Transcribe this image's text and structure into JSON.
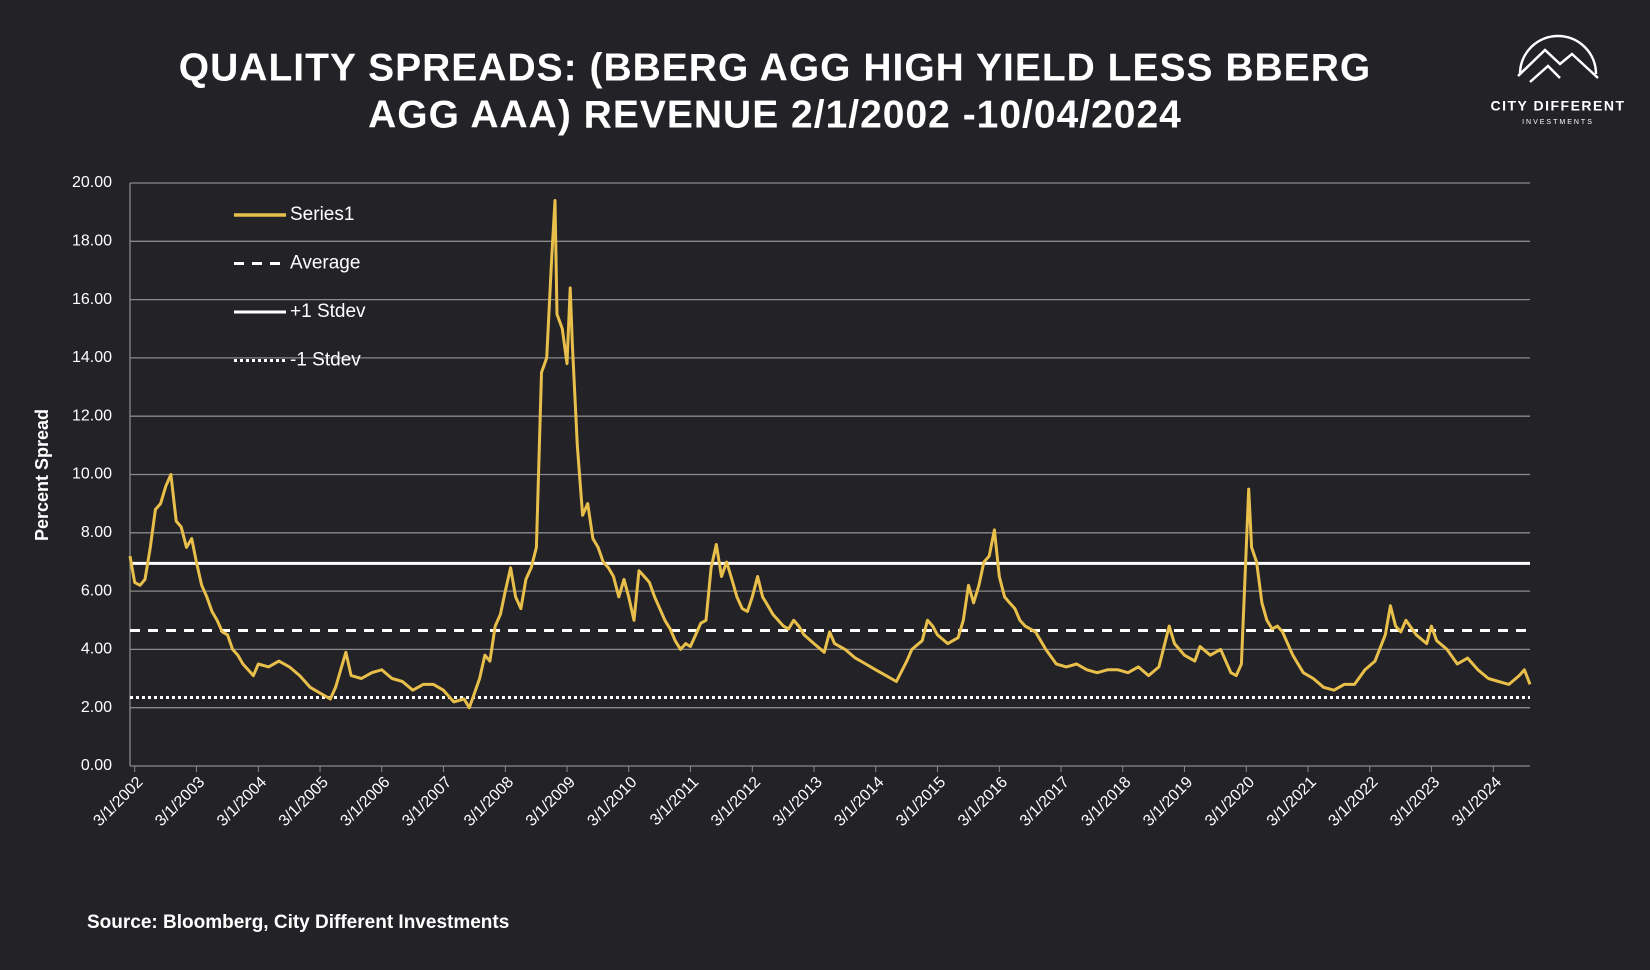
{
  "chart_data": {
    "type": "line",
    "title_lines": [
      "QUALITY SPREADS: (BBERG AGG HIGH YIELD LESS BBERG",
      "AGG AAA) REVENUE 2/1/2002 -10/04/2024"
    ],
    "logo": {
      "name": "CITY DIFFERENT",
      "sub": "INVESTMENTS"
    },
    "y_label": "Percent Spread",
    "source": "Source: Bloomberg, City Different Investments",
    "ylim": [
      0,
      20
    ],
    "yticks": [
      {
        "value": 0,
        "label": "0.00"
      },
      {
        "value": 2,
        "label": "2.00"
      },
      {
        "value": 4,
        "label": "4.00"
      },
      {
        "value": 6,
        "label": "6.00"
      },
      {
        "value": 8,
        "label": "8.00"
      },
      {
        "value": 10,
        "label": "10.00"
      },
      {
        "value": 12,
        "label": "12.00"
      },
      {
        "value": 14,
        "label": "14.00"
      },
      {
        "value": 16,
        "label": "16.00"
      },
      {
        "value": 18,
        "label": "18.00"
      },
      {
        "value": 20,
        "label": "20.00"
      }
    ],
    "xlim": [
      "2/1/2002",
      "10/4/2024"
    ],
    "xticks": [
      "3/1/2002",
      "3/1/2003",
      "3/1/2004",
      "3/1/2005",
      "3/1/2006",
      "3/1/2007",
      "3/1/2008",
      "3/1/2009",
      "3/1/2010",
      "3/1/2011",
      "3/1/2012",
      "3/1/2013",
      "3/1/2014",
      "3/1/2015",
      "3/1/2016",
      "3/1/2017",
      "3/1/2018",
      "3/1/2019",
      "3/1/2020",
      "3/1/2021",
      "3/1/2022",
      "3/1/2023",
      "3/1/2024"
    ],
    "grid": true,
    "series": [
      {
        "name": "Series1",
        "color": "#e8bf4a",
        "x": [
          "2/1/2002",
          "3/1/2002",
          "4/1/2002",
          "5/1/2002",
          "6/1/2002",
          "7/1/2002",
          "8/1/2002",
          "9/1/2002",
          "10/1/2002",
          "11/1/2002",
          "12/1/2002",
          "1/1/2003",
          "2/1/2003",
          "3/1/2003",
          "4/1/2003",
          "5/1/2003",
          "6/1/2003",
          "7/1/2003",
          "8/1/2003",
          "9/1/2003",
          "10/1/2003",
          "11/1/2003",
          "12/1/2003",
          "2/1/2004",
          "3/1/2004",
          "5/1/2004",
          "7/1/2004",
          "9/1/2004",
          "11/1/2004",
          "1/1/2005",
          "3/1/2005",
          "5/1/2005",
          "6/1/2005",
          "7/1/2005",
          "8/1/2005",
          "9/1/2005",
          "11/1/2005",
          "1/1/2006",
          "3/1/2006",
          "5/1/2006",
          "7/1/2006",
          "9/1/2006",
          "11/1/2006",
          "1/1/2007",
          "3/1/2007",
          "5/1/2007",
          "7/1/2007",
          "8/1/2007",
          "9/1/2007",
          "10/1/2007",
          "11/1/2007",
          "12/1/2007",
          "1/1/2008",
          "2/1/2008",
          "3/1/2008",
          "4/1/2008",
          "5/1/2008",
          "6/1/2008",
          "7/1/2008",
          "8/1/2008",
          "9/1/2008",
          "10/1/2008",
          "11/1/2008",
          "12/1/2008",
          "12/20/2008",
          "1/1/2009",
          "2/1/2009",
          "3/1/2009",
          "3/20/2009",
          "4/1/2009",
          "5/1/2009",
          "6/1/2009",
          "7/1/2009",
          "8/1/2009",
          "9/1/2009",
          "10/1/2009",
          "11/1/2009",
          "12/1/2009",
          "1/1/2010",
          "2/1/2010",
          "3/1/2010",
          "4/1/2010",
          "5/1/2010",
          "6/1/2010",
          "7/1/2010",
          "8/1/2010",
          "9/1/2010",
          "10/1/2010",
          "11/1/2010",
          "12/1/2010",
          "1/1/2011",
          "2/1/2011",
          "3/1/2011",
          "4/1/2011",
          "5/1/2011",
          "6/1/2011",
          "7/1/2011",
          "8/1/2011",
          "9/1/2011",
          "10/1/2011",
          "11/1/2011",
          "12/1/2011",
          "1/1/2012",
          "2/1/2012",
          "3/1/2012",
          "4/1/2012",
          "5/1/2012",
          "6/1/2012",
          "7/1/2012",
          "8/1/2012",
          "9/1/2012",
          "10/1/2012",
          "11/1/2012",
          "12/1/2012",
          "1/1/2013",
          "3/1/2013",
          "5/1/2013",
          "6/1/2013",
          "7/1/2013",
          "9/1/2013",
          "11/1/2013",
          "1/1/2014",
          "3/1/2014",
          "5/1/2014",
          "7/1/2014",
          "9/1/2014",
          "10/1/2014",
          "12/1/2014",
          "1/1/2015",
          "2/1/2015",
          "3/1/2015",
          "5/1/2015",
          "7/1/2015",
          "8/1/2015",
          "9/1/2015",
          "10/1/2015",
          "11/1/2015",
          "12/1/2015",
          "1/1/2016",
          "2/1/2016",
          "3/1/2016",
          "4/1/2016",
          "5/1/2016",
          "6/1/2016",
          "7/1/2016",
          "8/1/2016",
          "10/1/2016",
          "12/1/2016",
          "2/1/2017",
          "4/1/2017",
          "6/1/2017",
          "8/1/2017",
          "10/1/2017",
          "12/1/2017",
          "2/1/2018",
          "4/1/2018",
          "6/1/2018",
          "8/1/2018",
          "10/1/2018",
          "12/1/2018",
          "1/1/2019",
          "3/1/2019",
          "5/1/2019",
          "6/1/2019",
          "8/1/2019",
          "10/1/2019",
          "12/1/2019",
          "1/1/2020",
          "2/1/2020",
          "3/15/2020",
          "4/1/2020",
          "5/1/2020",
          "6/1/2020",
          "7/1/2020",
          "8/1/2020",
          "9/1/2020",
          "10/1/2020",
          "12/1/2020",
          "2/1/2021",
          "4/1/2021",
          "6/1/2021",
          "8/1/2021",
          "10/1/2021",
          "12/1/2021",
          "2/1/2022",
          "4/1/2022",
          "6/1/2022",
          "7/1/2022",
          "8/1/2022",
          "9/1/2022",
          "10/1/2022",
          "12/1/2022",
          "2/1/2023",
          "3/1/2023",
          "4/1/2023",
          "6/1/2023",
          "8/1/2023",
          "10/1/2023",
          "12/1/2023",
          "2/1/2024",
          "4/1/2024",
          "6/1/2024",
          "8/1/2024",
          "9/1/2024",
          "10/4/2024"
        ],
        "values": [
          7.2,
          6.3,
          6.2,
          6.4,
          7.5,
          8.8,
          9.0,
          9.6,
          10.0,
          8.4,
          8.2,
          7.5,
          7.8,
          7.0,
          6.2,
          5.8,
          5.3,
          5.0,
          4.6,
          4.5,
          4.0,
          3.8,
          3.5,
          3.1,
          3.5,
          3.4,
          3.6,
          3.4,
          3.1,
          2.7,
          2.5,
          2.3,
          2.7,
          3.3,
          3.9,
          3.1,
          3.0,
          3.2,
          3.3,
          3.0,
          2.9,
          2.6,
          2.8,
          2.8,
          2.6,
          2.2,
          2.3,
          2.0,
          2.5,
          3.0,
          3.8,
          3.6,
          4.8,
          5.2,
          6.0,
          6.8,
          5.8,
          5.4,
          6.4,
          6.8,
          7.5,
          13.5,
          14.0,
          17.5,
          19.4,
          15.5,
          15.0,
          13.8,
          16.4,
          14.5,
          11.0,
          8.6,
          9.0,
          7.8,
          7.5,
          7.0,
          6.8,
          6.5,
          5.8,
          6.4,
          5.8,
          5.0,
          6.7,
          6.5,
          6.3,
          5.8,
          5.4,
          5.0,
          4.7,
          4.3,
          4.0,
          4.2,
          4.1,
          4.5,
          4.9,
          5.0,
          6.8,
          7.6,
          6.5,
          7.0,
          6.4,
          5.8,
          5.4,
          5.3,
          5.8,
          6.5,
          5.8,
          5.5,
          5.2,
          5.0,
          4.8,
          4.7,
          5.0,
          4.8,
          4.5,
          4.2,
          3.9,
          4.6,
          4.2,
          4.0,
          3.7,
          3.5,
          3.3,
          3.1,
          2.9,
          3.6,
          4.0,
          4.3,
          5.0,
          4.8,
          4.5,
          4.2,
          4.4,
          5.0,
          6.2,
          5.6,
          6.2,
          7.0,
          7.2,
          8.1,
          6.5,
          5.8,
          5.6,
          5.4,
          5.0,
          4.8,
          4.6,
          4.0,
          3.5,
          3.4,
          3.5,
          3.3,
          3.2,
          3.3,
          3.3,
          3.2,
          3.4,
          3.1,
          3.4,
          4.8,
          4.2,
          3.8,
          3.6,
          4.1,
          3.8,
          4.0,
          3.2,
          3.1,
          3.5,
          9.5,
          7.5,
          7.0,
          5.6,
          5.0,
          4.7,
          4.8,
          4.6,
          3.8,
          3.2,
          3.0,
          2.7,
          2.6,
          2.8,
          2.8,
          3.3,
          3.6,
          4.5,
          5.5,
          4.8,
          4.6,
          5.0,
          4.5,
          4.2,
          4.8,
          4.3,
          4.0,
          3.5,
          3.7,
          3.3,
          3.0,
          2.9,
          2.8,
          3.1,
          3.3,
          2.8
        ]
      }
    ],
    "reference_lines": [
      {
        "name": "Average",
        "value": 4.65,
        "style": "dashed"
      },
      {
        "name": "+1 Stdev",
        "value": 6.95,
        "style": "solid"
      },
      {
        "name": "-1 Stdev",
        "value": 2.35,
        "style": "dotted"
      }
    ]
  }
}
